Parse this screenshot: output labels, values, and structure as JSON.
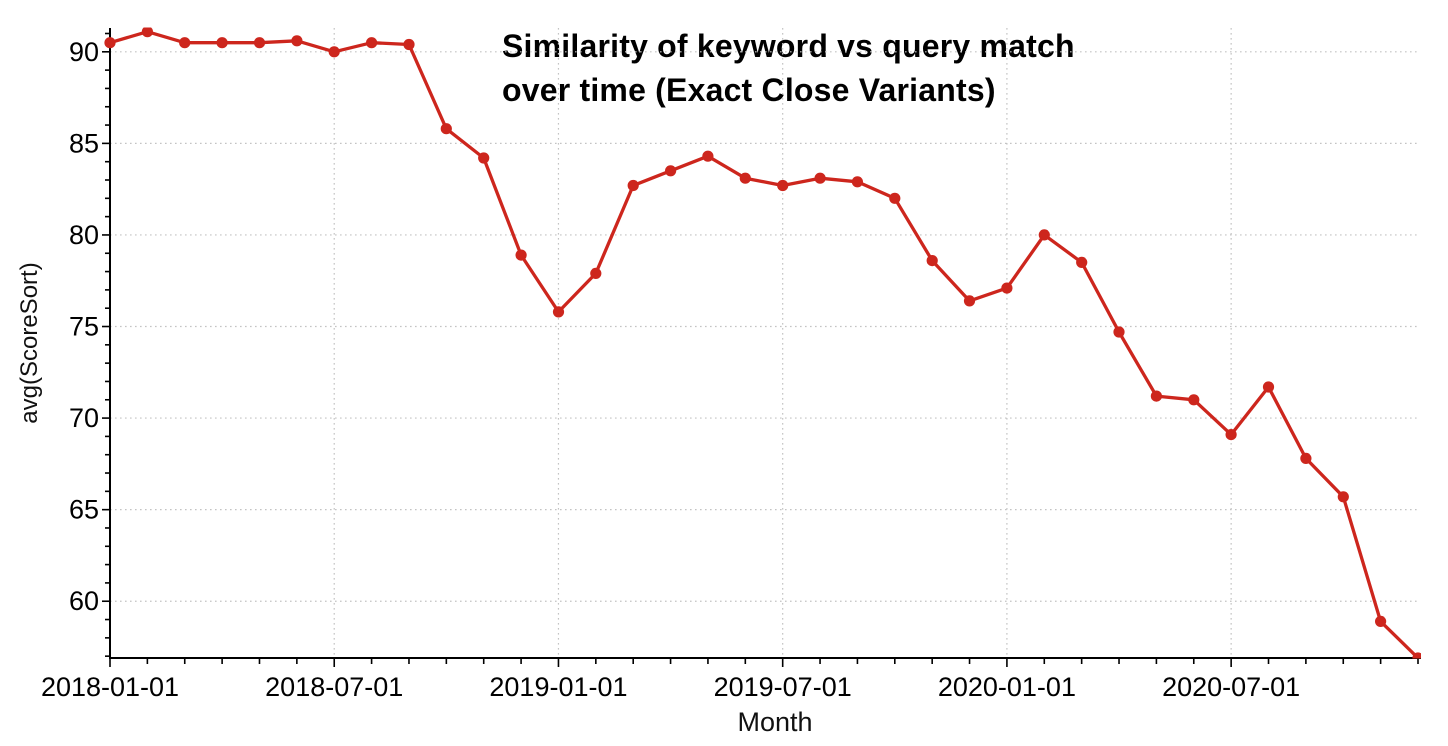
{
  "chart": {
    "title_line1": "Similarity of keyword vs query match",
    "title_line2": "over time (Exact Close Variants)",
    "xlabel": "Month",
    "ylabel": "avg(ScoreSort)"
  },
  "chart_data": {
    "type": "line",
    "title": "Similarity of keyword vs query match over time (Exact Close Variants)",
    "xlabel": "Month",
    "ylabel": "avg(ScoreSort)",
    "x": [
      "2018-01-01",
      "2018-02-01",
      "2018-03-01",
      "2018-04-01",
      "2018-05-01",
      "2018-06-01",
      "2018-07-01",
      "2018-08-01",
      "2018-09-01",
      "2018-10-01",
      "2018-11-01",
      "2018-12-01",
      "2019-01-01",
      "2019-02-01",
      "2019-03-01",
      "2019-04-01",
      "2019-05-01",
      "2019-06-01",
      "2019-07-01",
      "2019-08-01",
      "2019-09-01",
      "2019-10-01",
      "2019-11-01",
      "2019-12-01",
      "2020-01-01",
      "2020-02-01",
      "2020-03-01",
      "2020-04-01",
      "2020-05-01",
      "2020-06-01",
      "2020-07-01",
      "2020-08-01",
      "2020-09-01",
      "2020-10-01",
      "2020-11-01",
      "2020-12-01"
    ],
    "values": [
      90.5,
      91.1,
      90.5,
      90.5,
      90.5,
      90.6,
      90.0,
      90.5,
      90.4,
      85.8,
      84.2,
      78.9,
      75.8,
      77.9,
      82.7,
      83.5,
      84.3,
      83.1,
      82.7,
      83.1,
      82.9,
      82.0,
      78.6,
      76.4,
      77.1,
      80.0,
      78.5,
      74.7,
      71.2,
      71.0,
      69.1,
      71.7,
      67.8,
      65.7,
      58.9,
      56.9
    ],
    "x_tick_labels": [
      "2018-01-01",
      "2018-07-01",
      "2019-01-01",
      "2019-07-01",
      "2020-01-01",
      "2020-07-01"
    ],
    "x_major_every": 6,
    "y_ticks": [
      60,
      65,
      70,
      75,
      80,
      85,
      90
    ],
    "ylim": [
      56.9,
      91.3
    ],
    "grid": "dotted",
    "legend_position": "none",
    "line_color": "#cd261d",
    "axis_color": "#000000",
    "grid_color": "#c3c3c3",
    "tick_label_color": "#000000"
  }
}
